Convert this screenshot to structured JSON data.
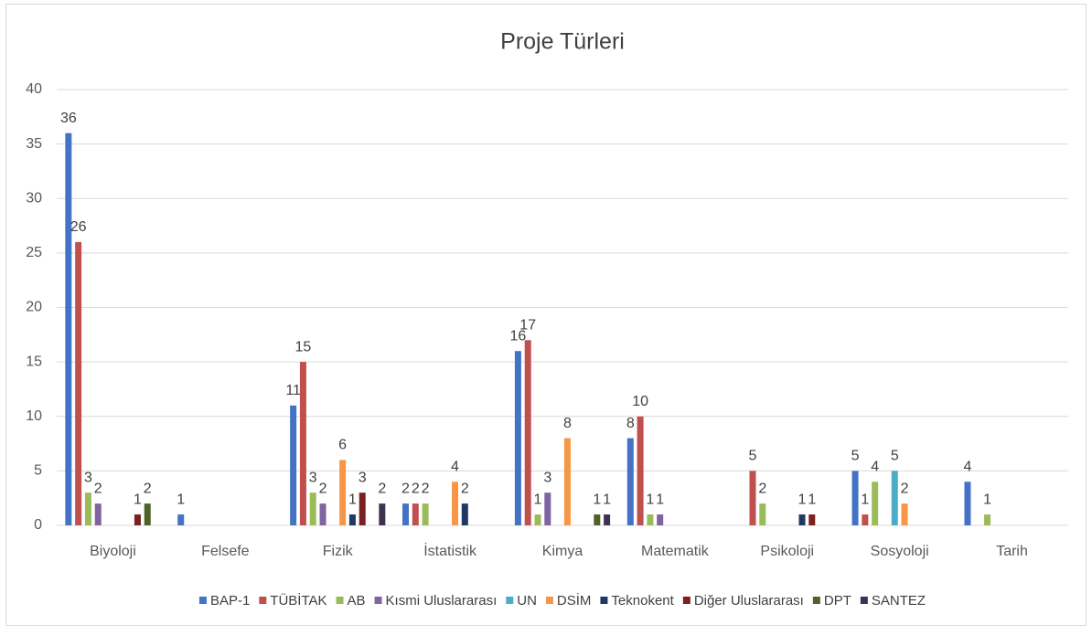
{
  "chart_data": {
    "type": "bar",
    "title": "Proje Türleri",
    "categories": [
      "Biyoloji",
      "Felsefe",
      "Fizik",
      "İstatistik",
      "Kimya",
      "Matematik",
      "Psikoloji",
      "Sosyoloji",
      "Tarih"
    ],
    "series": [
      {
        "name": "BAP-1",
        "color": "#4472c4",
        "values": [
          36,
          1,
          11,
          2,
          16,
          8,
          null,
          5,
          4
        ]
      },
      {
        "name": "TÜBİTAK",
        "color": "#c0504d",
        "values": [
          26,
          null,
          15,
          2,
          17,
          10,
          5,
          1,
          null
        ]
      },
      {
        "name": "AB",
        "color": "#9bbb59",
        "values": [
          3,
          null,
          3,
          2,
          1,
          1,
          2,
          4,
          1
        ]
      },
      {
        "name": "Kısmi Uluslararası",
        "color": "#8064a2",
        "values": [
          2,
          null,
          2,
          null,
          3,
          1,
          null,
          null,
          null
        ]
      },
      {
        "name": "UN",
        "color": "#4bacc6",
        "values": [
          null,
          null,
          null,
          null,
          null,
          null,
          null,
          5,
          null
        ]
      },
      {
        "name": "DSİM",
        "color": "#f79646",
        "values": [
          null,
          null,
          6,
          4,
          8,
          null,
          null,
          2,
          null
        ]
      },
      {
        "name": "Teknokent",
        "color": "#1f3864",
        "values": [
          null,
          null,
          1,
          2,
          null,
          null,
          1,
          null,
          null
        ]
      },
      {
        "name": "Diğer Uluslararası",
        "color": "#7b2020",
        "values": [
          1,
          null,
          3,
          null,
          null,
          null,
          1,
          null,
          null
        ]
      },
      {
        "name": "DPT",
        "color": "#4f6228",
        "values": [
          2,
          null,
          null,
          null,
          1,
          null,
          null,
          null,
          null
        ]
      },
      {
        "name": "SANTEZ",
        "color": "#3f3151",
        "values": [
          null,
          null,
          2,
          null,
          1,
          null,
          null,
          null,
          null
        ]
      }
    ],
    "ylim": [
      0,
      40
    ],
    "yticks": [
      0,
      5,
      10,
      15,
      20,
      25,
      30,
      35,
      40
    ],
    "grid": true,
    "legend": "bottom"
  }
}
